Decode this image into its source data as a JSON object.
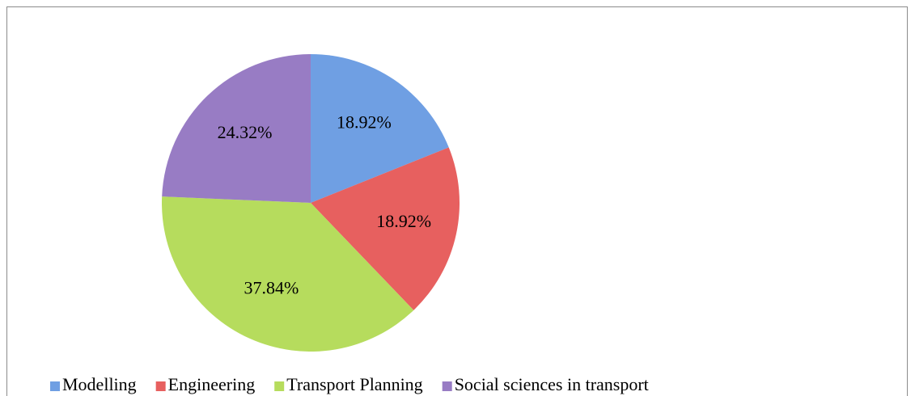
{
  "chart_data": {
    "type": "pie",
    "categories": [
      "Modelling",
      "Engineering",
      "Transport Planning",
      "Social sciences in transport"
    ],
    "values": [
      18.92,
      18.92,
      37.84,
      24.32
    ],
    "value_labels": [
      "18.92%",
      "18.92%",
      "37.84%",
      "24.32%"
    ],
    "colors": [
      "#6f9fe3",
      "#e7605f",
      "#b6dc5d",
      "#987cc4"
    ],
    "legend": "bottom"
  }
}
